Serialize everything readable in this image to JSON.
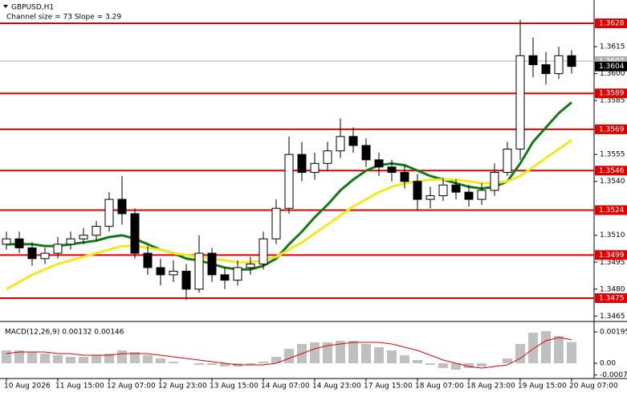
{
  "chart_data": {
    "type": "candlestick",
    "title": "GBPUSD,H1",
    "subtitle": "Channel size = 73 Slope = 3.29",
    "categories": [
      "10 Aug 2026",
      null,
      null,
      null,
      "11 Aug 15:00",
      null,
      null,
      null,
      "12 Aug 07:00",
      null,
      null,
      null,
      "12 Aug 23:00",
      null,
      null,
      null,
      "13 Aug 15:00",
      null,
      null,
      null,
      "14 Aug 07:00",
      null,
      null,
      null,
      "14 Aug 23:00",
      null,
      null,
      null,
      "17 Aug 15:00",
      null,
      null,
      null,
      "18 Aug 07:00",
      null,
      null,
      null,
      "18 Aug 23:00",
      null,
      null,
      null,
      "19 Aug 15:00",
      null,
      null,
      null,
      "20 Aug 07:00"
    ],
    "open": [
      1.3505,
      1.3508,
      1.3503,
      1.3497,
      1.35,
      1.3505,
      1.3508,
      1.351,
      1.3515,
      1.353,
      1.3522,
      1.35,
      1.3492,
      1.3488,
      1.349,
      1.348,
      1.35,
      1.3488,
      1.3485,
      1.3492,
      1.3494,
      1.3508,
      1.3525,
      1.3555,
      1.3545,
      1.355,
      1.3557,
      1.3565,
      1.356,
      1.3552,
      1.3548,
      1.3545,
      1.354,
      1.353,
      1.3532,
      1.3538,
      1.3534,
      1.353,
      1.3535,
      1.3545,
      1.3558,
      1.361,
      1.3605,
      1.36,
      1.361
    ],
    "high": [
      1.3512,
      1.3512,
      1.3506,
      1.3503,
      1.3509,
      1.3512,
      1.3514,
      1.3518,
      1.3534,
      1.3543,
      1.3525,
      1.3504,
      1.3497,
      1.3496,
      1.3494,
      1.351,
      1.3503,
      1.3492,
      1.3496,
      1.3498,
      1.3512,
      1.353,
      1.3565,
      1.3562,
      1.3556,
      1.3562,
      1.3575,
      1.357,
      1.3564,
      1.3556,
      1.3552,
      1.3549,
      1.3544,
      1.3537,
      1.3542,
      1.3541,
      1.3538,
      1.3539,
      1.355,
      1.3562,
      1.363,
      1.362,
      1.3612,
      1.3615,
      1.3613
    ],
    "low": [
      1.3502,
      1.35,
      1.3493,
      1.3494,
      1.3497,
      1.3502,
      1.3505,
      1.3507,
      1.3512,
      1.3516,
      1.3497,
      1.3488,
      1.3482,
      1.3484,
      1.3474,
      1.3478,
      1.3484,
      1.348,
      1.3482,
      1.3488,
      1.3491,
      1.3505,
      1.3522,
      1.354,
      1.3541,
      1.3546,
      1.3553,
      1.3556,
      1.3548,
      1.3543,
      1.354,
      1.3536,
      1.3524,
      1.3525,
      1.3529,
      1.353,
      1.3526,
      1.3527,
      1.3532,
      1.3543,
      1.3552,
      1.3598,
      1.3594,
      1.3597,
      1.36
    ],
    "close": [
      1.3508,
      1.3503,
      1.3497,
      1.35,
      1.3505,
      1.3508,
      1.351,
      1.3515,
      1.353,
      1.3522,
      1.35,
      1.3492,
      1.3488,
      1.349,
      1.348,
      1.35,
      1.3488,
      1.3485,
      1.3492,
      1.3494,
      1.3508,
      1.3525,
      1.3555,
      1.3545,
      1.355,
      1.3557,
      1.3565,
      1.356,
      1.3552,
      1.3548,
      1.3545,
      1.354,
      1.353,
      1.3532,
      1.3538,
      1.3534,
      1.353,
      1.3535,
      1.3545,
      1.3558,
      1.361,
      1.3605,
      1.36,
      1.361,
      1.3604
    ],
    "series": [
      {
        "color": "#137a13",
        "values": [
          1.3505,
          1.3505,
          1.3505,
          1.3504,
          1.3504,
          1.3505,
          1.3506,
          1.3507,
          1.3509,
          1.351,
          1.3508,
          1.3505,
          1.3502,
          1.35,
          1.3497,
          1.3496,
          1.3494,
          1.3492,
          1.3491,
          1.3491,
          1.3493,
          1.3497,
          1.3505,
          1.3512,
          1.352,
          1.3527,
          1.3535,
          1.3541,
          1.3546,
          1.3549,
          1.355,
          1.3549,
          1.3546,
          1.3543,
          1.3541,
          1.3539,
          1.3537,
          1.3536,
          1.3537,
          1.354,
          1.355,
          1.3562,
          1.357,
          1.3578,
          1.3584
        ]
      },
      {
        "color": "#f2e81c",
        "values": [
          1.348,
          1.3484,
          1.3488,
          1.3491,
          1.3494,
          1.3496,
          1.3498,
          1.35,
          1.3502,
          1.3504,
          1.3504,
          1.3503,
          1.3502,
          1.35,
          1.3499,
          1.3498,
          1.3497,
          1.3496,
          1.3495,
          1.3495,
          1.3496,
          1.3498,
          1.3502,
          1.3506,
          1.3511,
          1.3516,
          1.3521,
          1.3526,
          1.353,
          1.3534,
          1.3537,
          1.3539,
          1.354,
          1.3541,
          1.3541,
          1.3541,
          1.354,
          1.3539,
          1.3539,
          1.354,
          1.3543,
          1.3548,
          1.3553,
          1.3558,
          1.3563
        ]
      }
    ],
    "ylim": [
      1.3462,
      1.3641
    ],
    "yticks": [
      1.3615,
      {
        "value": 1.36,
        "label": "1.3600"
      },
      1.3585,
      1.3555,
      {
        "value": 1.354,
        "label": "1.3540"
      },
      {
        "value": 1.351,
        "label": "1.3510"
      },
      1.3495,
      {
        "value": 1.348,
        "label": "1.3480"
      },
      1.3465
    ],
    "levels": [
      {
        "value": 1.3607,
        "color": "#b0b0b0"
      },
      {
        "value": 1.3628,
        "color": "#e00000"
      },
      {
        "value": 1.3589,
        "color": "#e00000"
      },
      {
        "value": 1.3569,
        "color": "#e00000"
      },
      {
        "value": 1.3546,
        "color": "#e00000"
      },
      {
        "value": 1.3524,
        "color": "#e00000"
      },
      {
        "value": 1.3499,
        "color": "#e00000"
      },
      {
        "value": 1.3475,
        "color": "#e00000"
      }
    ],
    "last_price": 1.3604,
    "macd": {
      "label": "MACD(12,26,9) 0.00132 0.00146",
      "hist_color": "#c0c0c0",
      "signal_color": "#e00000",
      "values": [
        0.0008,
        0.0008,
        0.0007,
        0.0006,
        0.0005,
        0.0004,
        0.0004,
        0.0005,
        0.0006,
        0.0008,
        0.0007,
        0.0005,
        0.0003,
        0.0001,
        0.0,
        -0.0001,
        -0.0001,
        -0.0002,
        -0.0002,
        -0.0001,
        0.0001,
        0.0004,
        0.0009,
        0.0012,
        0.0013,
        0.0013,
        0.0014,
        0.0014,
        0.0012,
        0.001,
        0.0008,
        0.0005,
        0.0002,
        -0.0001,
        -0.0003,
        -0.0004,
        -0.0003,
        -0.0002,
        0.0,
        0.0003,
        0.0012,
        0.0019,
        0.002,
        0.0017,
        0.00132
      ],
      "signal": [
        0.0006,
        0.0007,
        0.0007,
        0.0007,
        0.0006,
        0.0006,
        0.0005,
        0.0005,
        0.0005,
        0.0006,
        0.0006,
        0.0006,
        0.0005,
        0.0004,
        0.0003,
        0.0002,
        0.0001,
        0.0,
        -0.0001,
        -0.0001,
        -0.0001,
        0.0,
        0.0003,
        0.0006,
        0.0009,
        0.0011,
        0.0012,
        0.0013,
        0.0013,
        0.0013,
        0.0012,
        0.001,
        0.0008,
        0.0005,
        0.0002,
        0.0,
        -0.0002,
        -0.0003,
        -0.0002,
        -0.0001,
        0.0003,
        0.0009,
        0.0014,
        0.0016,
        0.00146
      ],
      "ylim": [
        -0.0009,
        0.0025
      ],
      "yticks": [
        0.00195,
        {
          "value": 0,
          "label": "0.00"
        },
        -0.00073
      ]
    }
  }
}
